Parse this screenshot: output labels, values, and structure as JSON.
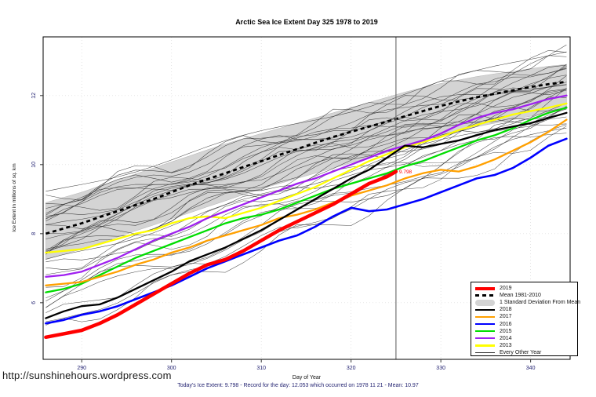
{
  "title": "Arctic Sea Ice Extent Day 325 1978 to 2019",
  "footer": {
    "url": "http://sunshinehours.wordpress.com",
    "summary": "Today's Ice Extent: 9.798  - Record for the day: 12.053 which occurred on 1978 11 21  - Mean: 10.97"
  },
  "chart_data": {
    "type": "line",
    "title": "Arctic Sea Ice Extent Day 325 1978 to 2019",
    "xlabel": "Day of Year",
    "ylabel": "Ice Extent in millions of sq. km",
    "xlim": [
      285.7,
      344.4
    ],
    "ylim": [
      4.36,
      13.7
    ],
    "xticks": [
      290,
      300,
      310,
      320,
      330,
      340
    ],
    "yticks": [
      6,
      8,
      10,
      12
    ],
    "grid": "dotted",
    "grid_color": "#d8d8d8",
    "tick_label_color": "#1c1c6e",
    "vline": {
      "x": 325,
      "color": "#737373"
    },
    "annotation": {
      "x": 325,
      "y": 9.798,
      "label": "9.798",
      "color": "#ff0000"
    },
    "days": [
      286,
      288,
      290,
      292,
      294,
      296,
      298,
      300,
      302,
      304,
      306,
      308,
      310,
      312,
      314,
      316,
      318,
      320,
      322,
      324,
      326,
      328,
      330,
      332,
      334,
      336,
      338,
      340,
      342,
      344
    ],
    "band": {
      "name": "1 Standard Deviation From Mean",
      "color": "#d4d4d4",
      "upper": [
        8.9,
        9.05,
        9.2,
        9.38,
        9.55,
        9.73,
        9.9,
        10.08,
        10.25,
        10.43,
        10.6,
        10.75,
        10.9,
        11.05,
        11.2,
        11.35,
        11.5,
        11.65,
        11.8,
        11.95,
        12.1,
        12.23,
        12.35,
        12.45,
        12.55,
        12.63,
        12.7,
        12.78,
        12.85,
        12.9
      ],
      "lower": [
        7.25,
        7.4,
        7.55,
        7.73,
        7.9,
        8.08,
        8.25,
        8.43,
        8.6,
        8.78,
        8.95,
        9.13,
        9.3,
        9.45,
        9.6,
        9.75,
        9.9,
        10.05,
        10.2,
        10.35,
        10.5,
        10.65,
        10.8,
        10.95,
        11.1,
        11.2,
        11.3,
        11.4,
        11.5,
        11.6
      ],
      "name_short": "std-dev-band"
    },
    "mean": {
      "name": "Mean 1981-2010",
      "color": "#000000",
      "dashed": true,
      "values": [
        8.0,
        8.15,
        8.3,
        8.48,
        8.65,
        8.83,
        9.0,
        9.2,
        9.4,
        9.58,
        9.75,
        9.93,
        10.1,
        10.28,
        10.45,
        10.63,
        10.8,
        10.95,
        11.1,
        11.25,
        11.4,
        11.55,
        11.7,
        11.83,
        11.95,
        12.05,
        12.15,
        12.25,
        12.33,
        12.4
      ]
    },
    "series": [
      {
        "name": "2013",
        "color": "#ffff00",
        "width": 2.3,
        "values": [
          7.45,
          7.5,
          7.55,
          7.7,
          7.85,
          8.0,
          8.1,
          8.3,
          8.45,
          8.5,
          8.45,
          8.6,
          8.75,
          8.95,
          9.15,
          9.35,
          9.6,
          9.85,
          10.1,
          10.3,
          10.5,
          10.65,
          10.8,
          11.0,
          11.15,
          11.3,
          11.45,
          11.55,
          11.65,
          11.77
        ]
      },
      {
        "name": "2014",
        "color": "#a020f0",
        "width": 2.3,
        "values": [
          6.75,
          6.8,
          6.9,
          7.1,
          7.3,
          7.55,
          7.8,
          8.0,
          8.2,
          8.45,
          8.65,
          8.85,
          9.05,
          9.25,
          9.45,
          9.6,
          9.8,
          10.0,
          10.2,
          10.4,
          10.55,
          10.7,
          10.9,
          11.15,
          11.35,
          11.5,
          11.6,
          11.75,
          11.9,
          12.0
        ]
      },
      {
        "name": "2015",
        "color": "#00dd00",
        "width": 2.3,
        "values": [
          6.3,
          6.4,
          6.55,
          6.8,
          7.05,
          7.3,
          7.5,
          7.7,
          7.9,
          8.1,
          8.3,
          8.45,
          8.55,
          8.7,
          8.9,
          9.1,
          9.3,
          9.45,
          9.6,
          9.75,
          9.95,
          10.1,
          10.3,
          10.5,
          10.7,
          10.85,
          11.05,
          11.3,
          11.5,
          11.65
        ]
      },
      {
        "name": "2017",
        "color": "#ffa000",
        "width": 2.3,
        "values": [
          6.5,
          6.55,
          6.6,
          6.75,
          6.9,
          7.1,
          7.25,
          7.45,
          7.6,
          7.8,
          7.95,
          8.1,
          8.25,
          8.45,
          8.55,
          8.7,
          8.9,
          9.1,
          9.25,
          9.4,
          9.6,
          9.75,
          9.85,
          9.8,
          9.95,
          10.15,
          10.4,
          10.65,
          10.95,
          11.3
        ]
      },
      {
        "name": "2016",
        "color": "#0000ff",
        "width": 2.6,
        "values": [
          5.4,
          5.5,
          5.65,
          5.75,
          5.9,
          6.1,
          6.3,
          6.5,
          6.75,
          7.0,
          7.2,
          7.4,
          7.6,
          7.8,
          7.95,
          8.2,
          8.5,
          8.75,
          8.65,
          8.7,
          8.85,
          9.0,
          9.2,
          9.4,
          9.6,
          9.7,
          9.9,
          10.2,
          10.55,
          10.75
        ]
      },
      {
        "name": "2018",
        "color": "#000000",
        "width": 2.3,
        "values": [
          5.55,
          5.75,
          5.9,
          5.95,
          6.15,
          6.4,
          6.65,
          6.9,
          7.2,
          7.4,
          7.6,
          7.85,
          8.1,
          8.4,
          8.7,
          9.0,
          9.3,
          9.6,
          9.85,
          10.2,
          10.55,
          10.5,
          10.6,
          10.7,
          10.85,
          11.0,
          11.1,
          11.2,
          11.35,
          11.5
        ]
      },
      {
        "name": "2019",
        "color": "#ff0000",
        "width": 4.5,
        "days": [
          286,
          288,
          290,
          292,
          294,
          296,
          298,
          300,
          302,
          304,
          306,
          308,
          310,
          312,
          314,
          316,
          318,
          320,
          322,
          324,
          325
        ],
        "values": [
          5.0,
          5.1,
          5.2,
          5.4,
          5.65,
          5.95,
          6.25,
          6.55,
          6.85,
          7.1,
          7.25,
          7.5,
          7.8,
          8.1,
          8.35,
          8.6,
          8.85,
          9.15,
          9.45,
          9.65,
          9.798
        ]
      }
    ],
    "background_lines": {
      "name": "Every Other Year",
      "color": "#2a2a2a",
      "width": 0.55,
      "endpoints": [
        [
          9.2,
          13.4
        ],
        [
          9.0,
          13.2
        ],
        [
          8.9,
          13.3
        ],
        [
          8.8,
          12.9
        ],
        [
          8.7,
          13.0
        ],
        [
          8.6,
          12.8
        ],
        [
          8.5,
          12.9
        ],
        [
          8.5,
          12.6
        ],
        [
          8.4,
          12.7
        ],
        [
          8.3,
          12.5
        ],
        [
          8.2,
          12.6
        ],
        [
          8.1,
          12.4
        ],
        [
          8.0,
          12.5
        ],
        [
          7.9,
          12.3
        ],
        [
          7.8,
          12.2
        ],
        [
          7.7,
          12.4
        ],
        [
          7.6,
          12.1
        ],
        [
          7.5,
          12.0
        ],
        [
          7.4,
          11.9
        ],
        [
          7.3,
          12.1
        ],
        [
          7.2,
          11.8
        ],
        [
          7.0,
          11.7
        ],
        [
          6.9,
          11.9
        ],
        [
          6.8,
          11.6
        ],
        [
          6.6,
          11.5
        ],
        [
          6.4,
          11.3
        ],
        [
          6.2,
          11.6
        ],
        [
          6.0,
          11.2
        ],
        [
          5.8,
          11.4
        ],
        [
          5.6,
          11.0
        ],
        [
          5.3,
          11.3
        ],
        [
          5.2,
          10.9
        ]
      ]
    }
  },
  "legend": {
    "items": [
      {
        "label": "2019",
        "type": "line",
        "color": "#ff0000",
        "thickness": 4
      },
      {
        "label": "Mean 1981-2010",
        "type": "dashed",
        "color": "#000000",
        "thickness": 3
      },
      {
        "label": "1 Standard Deviation From Mean",
        "type": "band",
        "color": "#d4d4d4",
        "thickness": 8
      },
      {
        "label": "2018",
        "type": "line",
        "color": "#000000",
        "thickness": 2.5
      },
      {
        "label": "2017",
        "type": "line",
        "color": "#ffa000",
        "thickness": 2.5
      },
      {
        "label": "2016",
        "type": "line",
        "color": "#0000ff",
        "thickness": 2.5
      },
      {
        "label": "2015",
        "type": "line",
        "color": "#00dd00",
        "thickness": 2.5
      },
      {
        "label": "2014",
        "type": "line",
        "color": "#a020f0",
        "thickness": 2.5
      },
      {
        "label": "2013",
        "type": "line",
        "color": "#ffff00",
        "thickness": 2.5
      },
      {
        "label": "Every Other Year",
        "type": "line",
        "color": "#333333",
        "thickness": 1
      }
    ]
  }
}
